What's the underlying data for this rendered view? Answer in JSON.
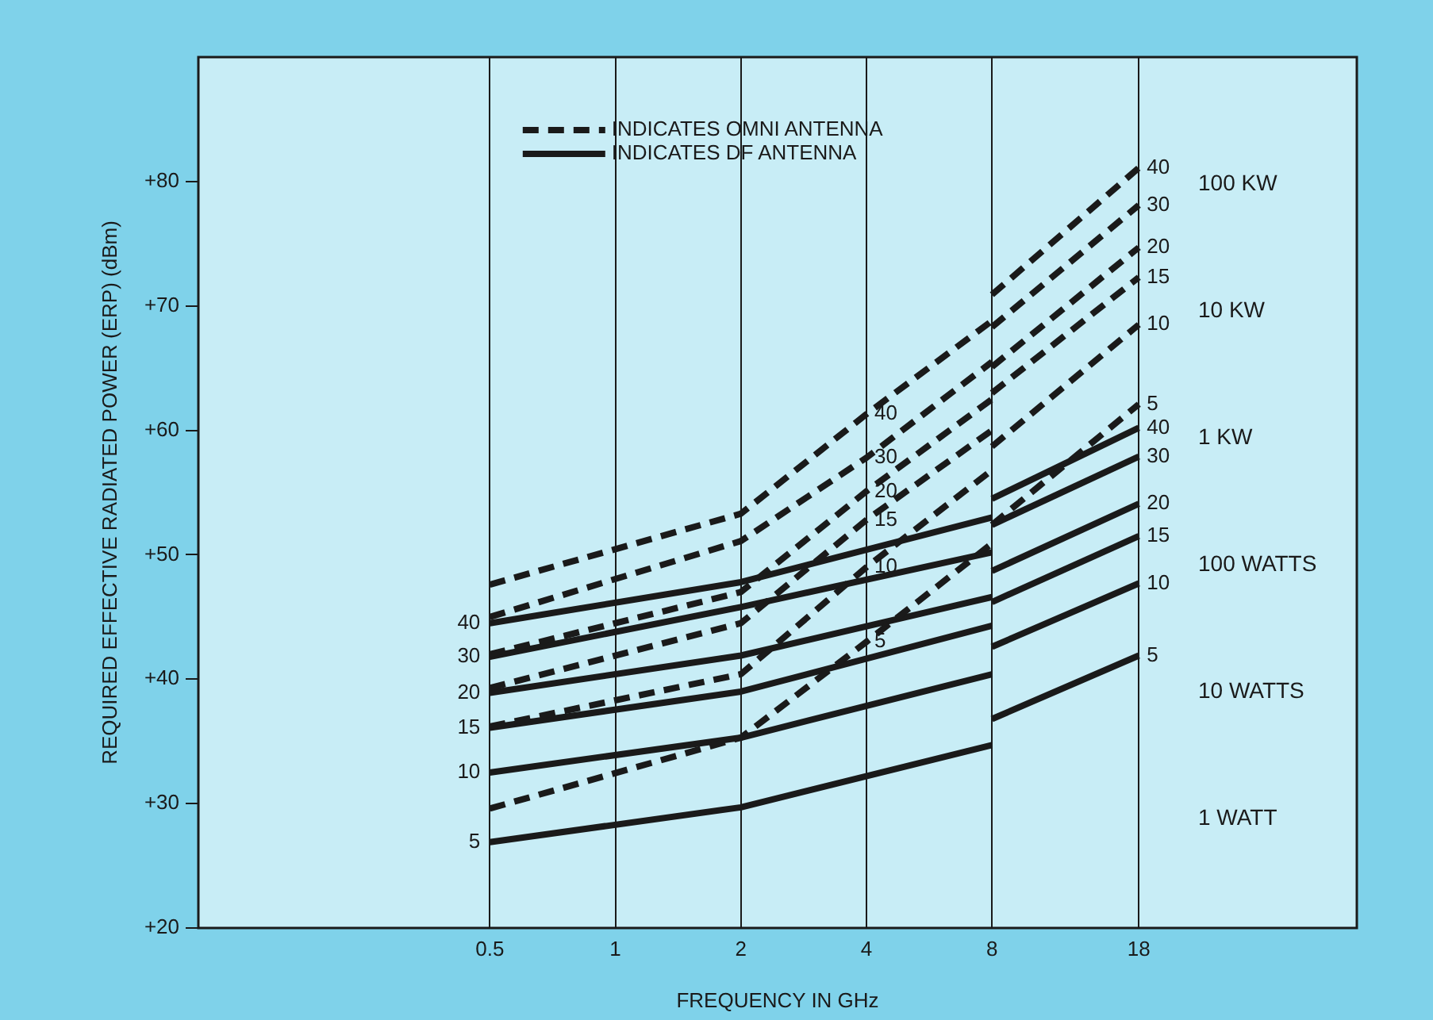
{
  "chart_data": {
    "type": "line",
    "xlabel": "FREQUENCY IN GHz",
    "ylabel": "REQUIRED EFFECTIVE RADIATED POWER (ERP) (dBm)",
    "log": "x",
    "xlim": [
      0.1,
      60
    ],
    "xticks": [
      0.5,
      1,
      2,
      4,
      8,
      18
    ],
    "ylim": [
      20,
      90
    ],
    "yticks": [
      {
        "value": 20,
        "label": "+20"
      },
      {
        "value": 30,
        "label": "+30"
      },
      {
        "value": 40,
        "label": "+40"
      },
      {
        "value": 50,
        "label": "+50"
      },
      {
        "value": 60,
        "label": "+60"
      },
      {
        "value": 70,
        "label": "+70"
      },
      {
        "value": 80,
        "label": "+80"
      }
    ],
    "grid": "x",
    "legend": "top left",
    "marker": "none",
    "series": [
      {
        "name": "INDICATES OMNI ANTENNA",
        "color": "#1a1a1a",
        "line_style": "dashed",
        "x": [
          0.5,
          2,
          4,
          8
        ],
        "values": [
          47.6,
          53.3,
          61.3,
          68.8
        ]
      },
      {
        "color": "#1a1a1a",
        "line_style": "dashed",
        "x": [
          8,
          18
        ],
        "values": [
          70.9,
          81.1
        ]
      },
      {
        "color": "#1a1a1a",
        "line_style": "dashed",
        "x": [
          0.5,
          2,
          4,
          8
        ],
        "values": [
          45.0,
          51.1,
          57.8,
          65.5
        ]
      },
      {
        "color": "#1a1a1a",
        "line_style": "dashed",
        "x": [
          8,
          18
        ],
        "values": [
          68.3,
          78.1
        ]
      },
      {
        "color": "#1a1a1a",
        "line_style": "dashed",
        "x": [
          0.5,
          2,
          4,
          8
        ],
        "values": [
          42.0,
          47.0,
          55.1,
          62.5
        ]
      },
      {
        "color": "#1a1a1a",
        "line_style": "dashed",
        "x": [
          8,
          18
        ],
        "values": [
          65.1,
          74.7
        ]
      },
      {
        "color": "#1a1a1a",
        "line_style": "dashed",
        "x": [
          0.5,
          2,
          4,
          8
        ],
        "values": [
          39.3,
          44.5,
          52.8,
          60.0
        ]
      },
      {
        "color": "#1a1a1a",
        "line_style": "dashed",
        "x": [
          8,
          18
        ],
        "values": [
          63.0,
          72.3
        ]
      },
      {
        "color": "#1a1a1a",
        "line_style": "dashed",
        "x": [
          0.5,
          2,
          4,
          8
        ],
        "values": [
          36.2,
          40.4,
          49.0,
          56.8
        ]
      },
      {
        "color": "#1a1a1a",
        "line_style": "dashed",
        "x": [
          8,
          18
        ],
        "values": [
          58.7,
          68.5
        ]
      },
      {
        "color": "#1a1a1a",
        "line_style": "dashed",
        "x": [
          0.5,
          2,
          4,
          8
        ],
        "values": [
          29.6,
          35.3,
          43.0,
          50.9
        ]
      },
      {
        "color": "#1a1a1a",
        "line_style": "dashed",
        "x": [
          8,
          18
        ],
        "values": [
          52.4,
          62.1
        ]
      },
      {
        "name": "INDICATES DF ANTENNA",
        "color": "#1a1a1a",
        "line_style": "solid",
        "x": [
          0.5,
          2,
          8
        ],
        "values": [
          44.5,
          47.8,
          53.0
        ]
      },
      {
        "color": "#1a1a1a",
        "line_style": "solid",
        "x": [
          8,
          18
        ],
        "values": [
          54.5,
          60.2
        ]
      },
      {
        "color": "#1a1a1a",
        "line_style": "solid",
        "x": [
          0.5,
          2,
          8
        ],
        "values": [
          41.8,
          45.8,
          50.2
        ]
      },
      {
        "color": "#1a1a1a",
        "line_style": "solid",
        "x": [
          8,
          18
        ],
        "values": [
          52.4,
          57.9
        ]
      },
      {
        "color": "#1a1a1a",
        "line_style": "solid",
        "x": [
          0.5,
          2,
          8
        ],
        "values": [
          38.9,
          41.9,
          46.6
        ]
      },
      {
        "color": "#1a1a1a",
        "line_style": "solid",
        "x": [
          8,
          18
        ],
        "values": [
          48.7,
          54.1
        ]
      },
      {
        "color": "#1a1a1a",
        "line_style": "solid",
        "x": [
          0.5,
          2,
          8
        ],
        "values": [
          36.1,
          39.0,
          44.3
        ]
      },
      {
        "color": "#1a1a1a",
        "line_style": "solid",
        "x": [
          8,
          18
        ],
        "values": [
          46.2,
          51.5
        ]
      },
      {
        "color": "#1a1a1a",
        "line_style": "solid",
        "x": [
          0.5,
          2,
          8
        ],
        "values": [
          32.5,
          35.3,
          40.4
        ]
      },
      {
        "color": "#1a1a1a",
        "line_style": "solid",
        "x": [
          8,
          18
        ],
        "values": [
          42.6,
          47.7
        ]
      },
      {
        "color": "#1a1a1a",
        "line_style": "solid",
        "x": [
          0.5,
          2,
          8
        ],
        "values": [
          26.9,
          29.7,
          34.7
        ]
      },
      {
        "color": "#1a1a1a",
        "line_style": "solid",
        "x": [
          8,
          18
        ],
        "values": [
          36.8,
          41.9
        ]
      }
    ],
    "annotations": [
      {
        "text": "40",
        "x": 0.5,
        "y": 44.5
      },
      {
        "text": "30",
        "x": 0.5,
        "y": 41.8
      },
      {
        "text": "20",
        "x": 0.5,
        "y": 38.9
      },
      {
        "text": "15",
        "x": 0.5,
        "y": 36.1
      },
      {
        "text": "10",
        "x": 0.5,
        "y": 32.5
      },
      {
        "text": "5",
        "x": 0.5,
        "y": 26.9
      },
      {
        "text": "40",
        "x": 4,
        "y": 61.3
      },
      {
        "text": "30",
        "x": 4,
        "y": 57.8
      },
      {
        "text": "20",
        "x": 4,
        "y": 55.1
      },
      {
        "text": "15",
        "x": 4,
        "y": 52.8
      },
      {
        "text": "10",
        "x": 4,
        "y": 49.0
      },
      {
        "text": "5",
        "x": 4,
        "y": 43.0
      },
      {
        "text": "40",
        "x": 18,
        "y": 81.1
      },
      {
        "text": "30",
        "x": 18,
        "y": 78.1
      },
      {
        "text": "20",
        "x": 18,
        "y": 74.7
      },
      {
        "text": "15",
        "x": 18,
        "y": 72.3
      },
      {
        "text": "10",
        "x": 18,
        "y": 68.5
      },
      {
        "text": "5",
        "x": 18,
        "y": 62.1
      },
      {
        "text": "40",
        "x": 18,
        "y": 60.2
      },
      {
        "text": "30",
        "x": 18,
        "y": 57.9
      },
      {
        "text": "20",
        "x": 18,
        "y": 54.1
      },
      {
        "text": "15",
        "x": 18,
        "y": 51.5
      },
      {
        "text": "10",
        "x": 18,
        "y": 47.7
      },
      {
        "text": "5",
        "x": 18,
        "y": 41.9
      },
      "100 KW",
      "10 KW",
      "1 KW",
      "100 WATTS",
      "10 WATTS",
      "1 WATT"
    ]
  }
}
